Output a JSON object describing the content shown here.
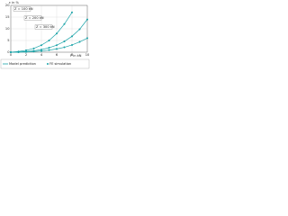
{
  "chart_data": {
    "type": "line",
    "y_label": "ε in %",
    "x_label": "F in kN",
    "x": [
      0,
      1,
      2,
      3,
      4,
      5,
      6,
      7,
      8,
      9,
      10
    ],
    "series": [
      {
        "name": "Z = 100 kN",
        "color": "#1aa3a8",
        "values": [
          0,
          0.3,
          0.8,
          1.6,
          3,
          5,
          8,
          12,
          17,
          null,
          null
        ]
      },
      {
        "name": "Z = 200 kN",
        "color": "#1aa3a8",
        "values": [
          0,
          0.1,
          0.3,
          0.6,
          1.1,
          1.9,
          3,
          4.6,
          6.8,
          9.8,
          14
        ]
      },
      {
        "name": "Z = 300 kN",
        "color": "#1aa3a8",
        "values": [
          0,
          0,
          0.1,
          0.3,
          0.5,
          0.9,
          1.4,
          2.1,
          3.1,
          4.4,
          6
        ]
      }
    ],
    "legend": [
      "Model prediction",
      "FE simulation"
    ],
    "xlim": [
      0,
      10
    ],
    "ylim": [
      0,
      20
    ],
    "xticks": [
      0,
      2,
      4,
      6,
      8,
      10
    ],
    "yticks": [
      0,
      5,
      10,
      15,
      20
    ],
    "grid": true
  }
}
